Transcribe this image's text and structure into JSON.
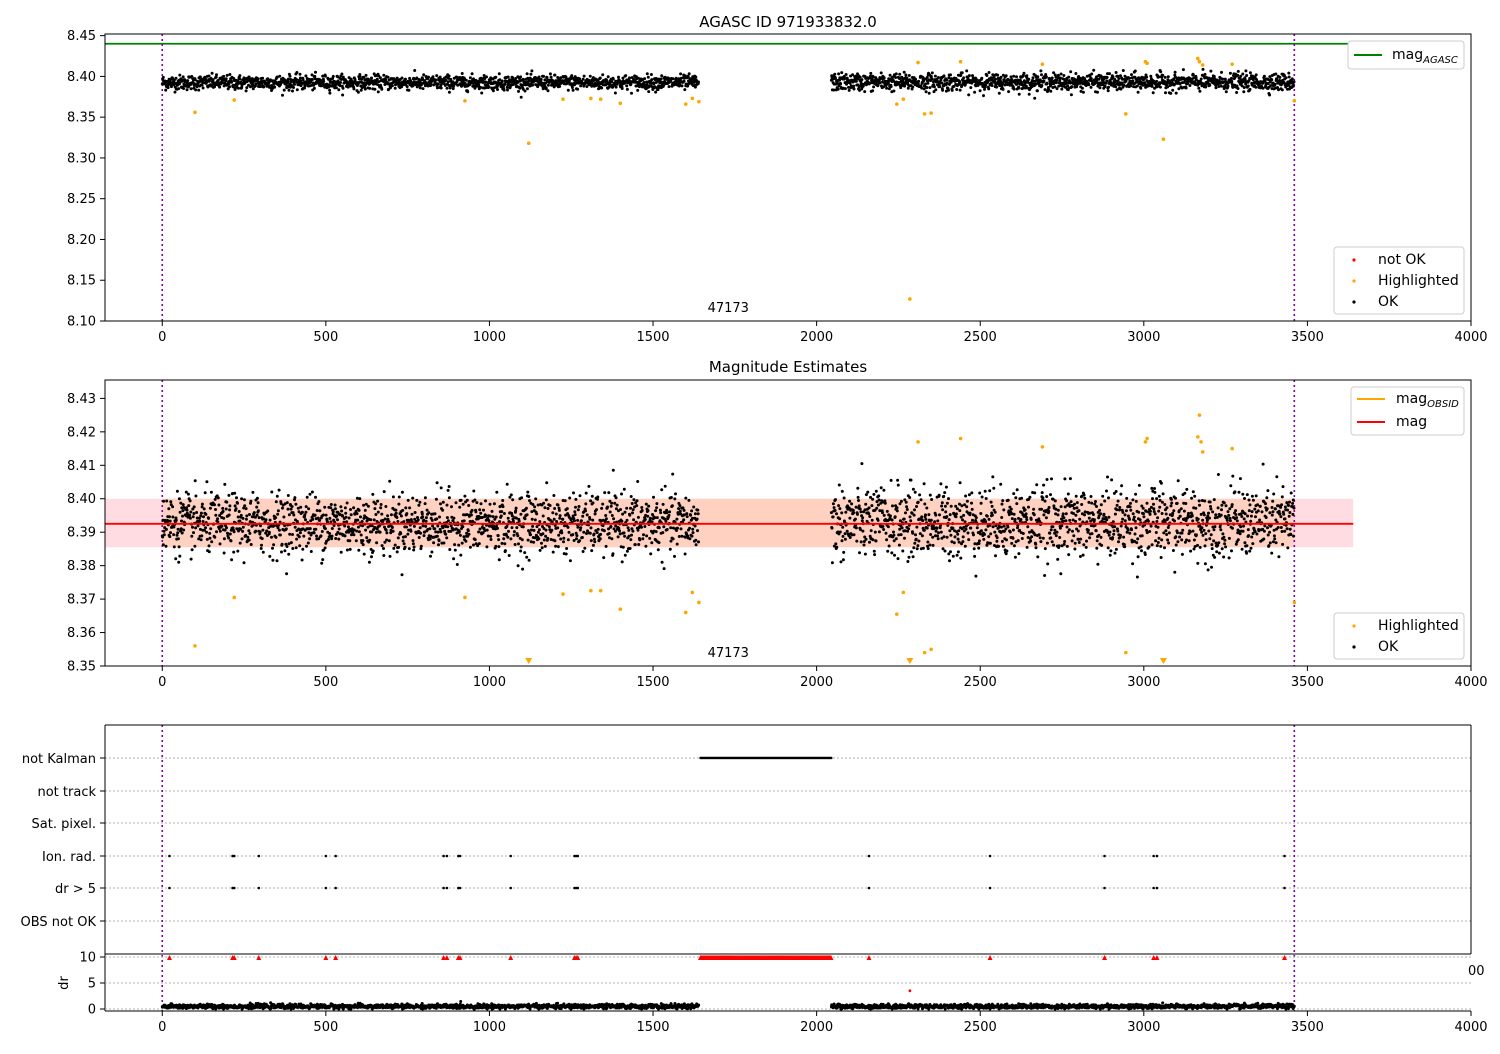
{
  "chart_data": [
    {
      "type": "scatter",
      "title": "AGASC ID 971933832.0",
      "xlim": [
        -175,
        4000
      ],
      "ylim": [
        8.1,
        8.452
      ],
      "xticks": [
        "0",
        "500",
        "1000",
        "1500",
        "2000",
        "2500",
        "3000",
        "3500",
        "4000"
      ],
      "yticks": [
        "8.10",
        "8.15",
        "8.20",
        "8.25",
        "8.30",
        "8.35",
        "8.40",
        "8.45"
      ],
      "obsid_label": "47173",
      "obsid_label_x": 1730,
      "obs_bounds": [
        0,
        3460
      ],
      "mag_agasc": 8.44,
      "legend_top": [
        {
          "label": "mag",
          "sub": "AGASC",
          "color": "#008000",
          "kind": "line"
        }
      ],
      "legend_bottom": [
        {
          "label": "not OK",
          "color": "#ff0000",
          "kind": "dot"
        },
        {
          "label": "Highlighted",
          "color": "#ffa500",
          "kind": "dot"
        },
        {
          "label": "OK",
          "color": "#000000",
          "kind": "dot"
        }
      ],
      "highlighted_points": [
        [
          100,
          8.356
        ],
        [
          220,
          8.371
        ],
        [
          925,
          8.37
        ],
        [
          1120,
          8.318
        ],
        [
          1225,
          8.372
        ],
        [
          1310,
          8.373
        ],
        [
          1340,
          8.372
        ],
        [
          1400,
          8.367
        ],
        [
          1600,
          8.366
        ],
        [
          1620,
          8.373
        ],
        [
          1640,
          8.369
        ],
        [
          2245,
          8.366
        ],
        [
          2265,
          8.372
        ],
        [
          2285,
          8.127
        ],
        [
          2310,
          8.417
        ],
        [
          2330,
          8.354
        ],
        [
          2350,
          8.355
        ],
        [
          2440,
          8.418
        ],
        [
          2690,
          8.415
        ],
        [
          2945,
          8.354
        ],
        [
          3005,
          8.418
        ],
        [
          3010,
          8.416
        ],
        [
          3060,
          8.323
        ],
        [
          3165,
          8.422
        ],
        [
          3170,
          8.418
        ],
        [
          3180,
          8.414
        ],
        [
          3270,
          8.415
        ],
        [
          3460,
          8.37
        ]
      ],
      "ok_segments": [
        {
          "x_start": 0,
          "x_end": 1640,
          "mean": 8.3925,
          "spread": 0.006
        },
        {
          "x_start": 2045,
          "x_end": 3460,
          "mean": 8.393,
          "spread": 0.007
        }
      ]
    },
    {
      "type": "scatter",
      "title": "Magnitude Estimates",
      "xlim": [
        -175,
        4000
      ],
      "ylim": [
        8.35,
        8.4355
      ],
      "xticks": [
        "0",
        "500",
        "1000",
        "1500",
        "2000",
        "2500",
        "3000",
        "3500",
        "4000"
      ],
      "yticks": [
        "8.35",
        "8.36",
        "8.37",
        "8.38",
        "8.39",
        "8.40",
        "8.41",
        "8.42",
        "8.43"
      ],
      "obsid_label": "47173",
      "obsid_label_x": 1730,
      "obs_bounds": [
        0,
        3460
      ],
      "mag": 8.3925,
      "mag_band": [
        8.3855,
        8.4
      ],
      "mag_band_x": [
        -175,
        3640
      ],
      "mag_obsid_band": [
        8.3855,
        8.4
      ],
      "mag_obsid_band_x": [
        0,
        3460
      ],
      "legend_top": [
        {
          "label": "mag",
          "sub": "OBSID",
          "color": "#ffa500",
          "kind": "line"
        },
        {
          "label": "mag",
          "sub": "",
          "color": "#ff0000",
          "kind": "line"
        }
      ],
      "legend_bottom": [
        {
          "label": "Highlighted",
          "color": "#ffa500",
          "kind": "dot"
        },
        {
          "label": "OK",
          "color": "#000000",
          "kind": "dot"
        }
      ],
      "highlighted_points": [
        [
          100,
          8.356
        ],
        [
          220,
          8.3705
        ],
        [
          925,
          8.3705
        ],
        [
          1225,
          8.3715
        ],
        [
          1310,
          8.3725
        ],
        [
          1340,
          8.3725
        ],
        [
          1400,
          8.367
        ],
        [
          1600,
          8.366
        ],
        [
          1620,
          8.372
        ],
        [
          1640,
          8.369
        ],
        [
          2245,
          8.3655
        ],
        [
          2265,
          8.372
        ],
        [
          2310,
          8.417
        ],
        [
          2330,
          8.354
        ],
        [
          2350,
          8.355
        ],
        [
          2440,
          8.418
        ],
        [
          2690,
          8.4155
        ],
        [
          2945,
          8.354
        ],
        [
          3005,
          8.417
        ],
        [
          3010,
          8.418
        ],
        [
          3165,
          8.4185
        ],
        [
          3170,
          8.425
        ],
        [
          3175,
          8.417
        ],
        [
          3180,
          8.414
        ],
        [
          3270,
          8.415
        ],
        [
          3460,
          8.369
        ]
      ],
      "below_range_markers": [
        1120,
        2285,
        3060
      ],
      "ok_segments": [
        {
          "x_start": 0,
          "x_end": 1640,
          "mean": 8.3925,
          "spread": 0.006
        },
        {
          "x_start": 2045,
          "x_end": 3460,
          "mean": 8.393,
          "spread": 0.007
        }
      ]
    },
    {
      "type": "scatter",
      "title": "",
      "xlim": [
        -175,
        4000
      ],
      "xticks": [
        "0",
        "500",
        "1000",
        "1500",
        "2000",
        "2500",
        "3000",
        "3500",
        "4000"
      ],
      "categories": [
        "not Kalman",
        "not track",
        "Sat. pixel.",
        "Ion. rad.",
        "dr > 5",
        "OBS not OK"
      ],
      "obs_bounds": [
        0,
        3460
      ],
      "not_kalman_range": [
        1645,
        2045
      ],
      "flag_times": [
        22,
        215,
        220,
        295,
        500,
        530,
        860,
        870,
        905,
        910,
        1065,
        1260,
        1265,
        1270,
        2160,
        2530,
        2880,
        3030,
        3040,
        3430
      ],
      "dr": {
        "ylabel": "dr",
        "yticks": [
          "0",
          "5",
          "10"
        ],
        "ylim": [
          0,
          10
        ],
        "threshold": 10,
        "outlier": [
          2285,
          3.5
        ],
        "typical": 0.5,
        "clipped_label": "00"
      }
    }
  ]
}
